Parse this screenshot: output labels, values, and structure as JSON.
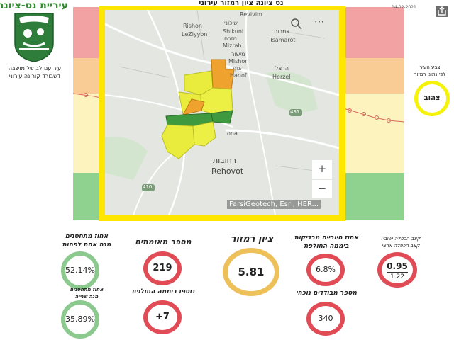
{
  "header": {
    "city_name": "עיריית נס-ציונה",
    "tagline_line1": "עיר עם לב של מושבה",
    "tagline_line2": "דשבורד קורונה עירוני",
    "map_title": "נס ציונה ציון רמזור עירוני",
    "date": "14-02-2021",
    "share_icon": "share-icon"
  },
  "map": {
    "labels": {
      "rishon": "Rishon",
      "leziyyon": "LeZiyyon",
      "shikuni_he": "שיכוני",
      "shikuni": "Shikuni",
      "mizrah_he": "מזרח",
      "mizrah": "Mizrah",
      "revivim": "Revivim",
      "tsamarot_he": "צמרות",
      "tsamarot": "Tsamarot",
      "mishor_he": "מישור",
      "mishor": "Mishor",
      "hanof_he": "הנוף",
      "hanof": "Hanof",
      "herzel_he": "הרצל",
      "herzel": "Herzel",
      "rehovot_he": "רחובות",
      "rehovot": "Rehovot",
      "ona": "ona",
      "r431": "431",
      "r410": "410"
    },
    "zoom_in": "+",
    "zoom_out": "−",
    "attribution": "FarsiGeotech, Esri, HER..."
  },
  "legend": {
    "line1": "צבע העיר",
    "line2": "לפי נתוני רמזור",
    "color_name": "צהוב",
    "color": "#f5f20b"
  },
  "kpis": {
    "positive_rate": {
      "label1": "אחוז מתחסנים",
      "label2": "מנה אחת לפחות",
      "value": "52.14%"
    },
    "second_dose": {
      "label1": "אחוז מתחסנים",
      "label2": "מנה שנייה",
      "value": "35.89%"
    },
    "confirmed": {
      "label": "מספר מאומתים",
      "value": "219"
    },
    "new_today": {
      "label": "נוספו ביממה החולפת",
      "value": "+7"
    },
    "score": {
      "label": "ציון רמזור",
      "value": "5.81"
    },
    "positive_tests": {
      "label1": "אחוז חיוביים מבדיקות",
      "label2": "ביממה החולפת",
      "value": "6.8%"
    },
    "isolated": {
      "label": "מספר מבודדים נוכחי",
      "value": "340"
    },
    "growth": {
      "label1": "קצב הכפלה ישובי:",
      "label2": "קצב הכפלה ארצי",
      "value_local": "0.95",
      "value_national": "1.22"
    }
  },
  "colors": {
    "red": "#e04b55",
    "green": "#8cc98e",
    "gold": "#eec05a",
    "map_frame": "#ffe600"
  }
}
